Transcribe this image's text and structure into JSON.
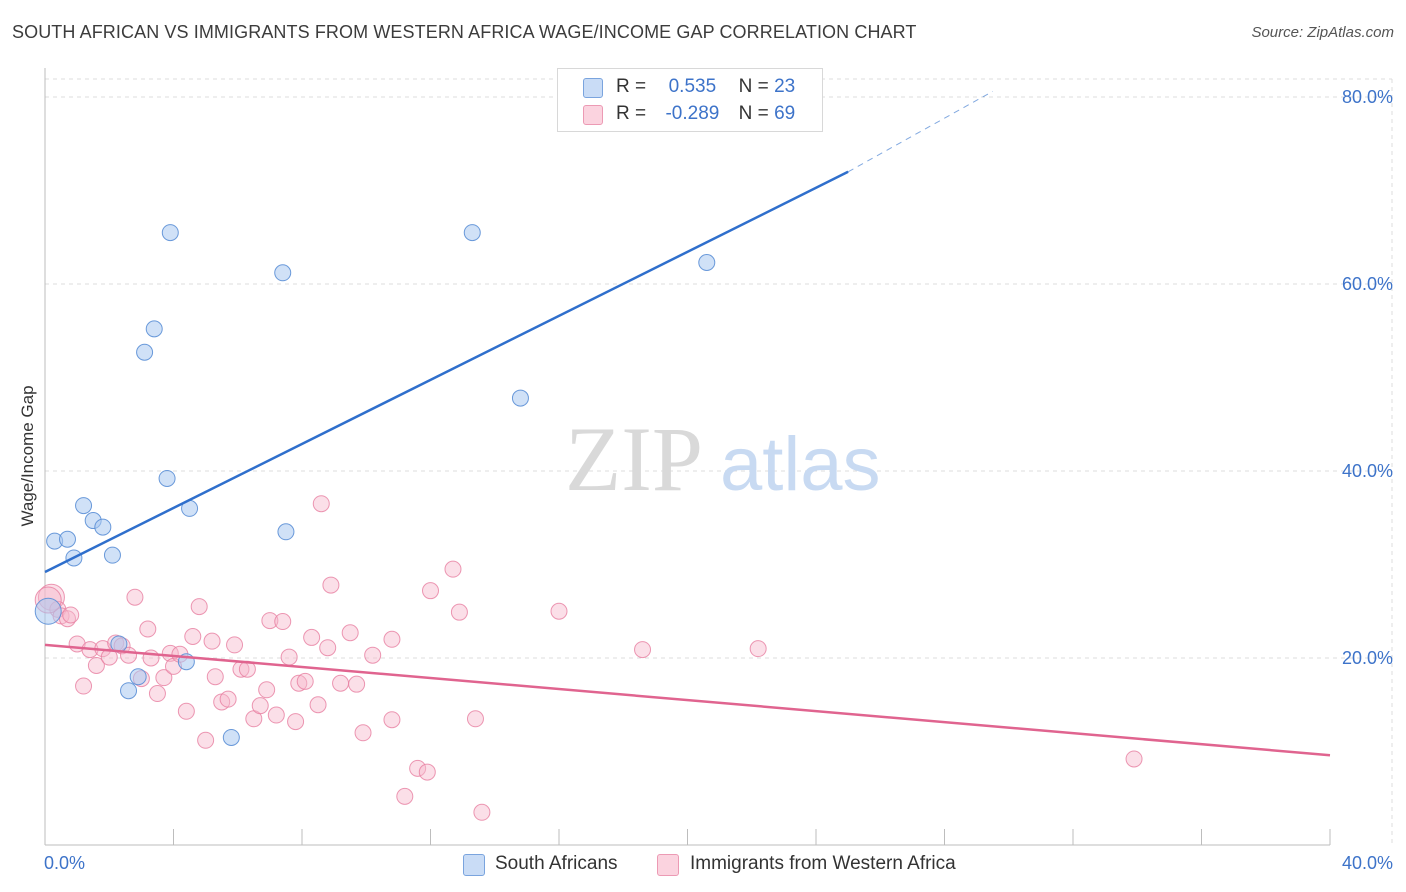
{
  "title": "SOUTH AFRICAN VS IMMIGRANTS FROM WESTERN AFRICA WAGE/INCOME GAP CORRELATION CHART",
  "source": "Source: ZipAtlas.com",
  "watermark": {
    "zip": "ZIP",
    "atlas": "atlas"
  },
  "legend": {
    "r_label": "R =",
    "n_label": "N =",
    "rows": [
      {
        "r": "0.535",
        "n": "23",
        "color": "#a9c8f0"
      },
      {
        "r": "-0.289",
        "n": "69",
        "color": "#f6b8cb"
      }
    ]
  },
  "bottom_legend": {
    "series1": "South Africans",
    "series2": "Immigrants from Western Africa"
  },
  "colors": {
    "blue_fill": "#a9c8f0",
    "blue_stroke": "#5b8fd6",
    "blue_line": "#2f6fcc",
    "pink_fill": "#f6b8cb",
    "pink_stroke": "#e77ea0",
    "pink_line": "#e0648f",
    "tick_label": "#3d73c9"
  },
  "chart_data": {
    "type": "scatter",
    "title": "SOUTH AFRICAN VS IMMIGRANTS FROM WESTERN AFRICA WAGE/INCOME GAP CORRELATION CHART",
    "xlabel": "",
    "ylabel": "Wage/Income Gap",
    "xlim": [
      0,
      40
    ],
    "ylim": [
      0,
      80
    ],
    "x_tick_labels": [
      "0.0%",
      "40.0%"
    ],
    "y_ticks": [
      20,
      40,
      60,
      80
    ],
    "y_tick_labels": [
      "20.0%",
      "40.0%",
      "60.0%",
      "80.0%"
    ],
    "grid": true,
    "legend_position": "top-center",
    "series": [
      {
        "name": "South Africans",
        "r": 0.535,
        "n": 23,
        "trend": {
          "x0": 0,
          "y0": 29.2,
          "x1": 25,
          "y1": 72.0,
          "dashed_to_x": 29.5,
          "dashed_to_y": 80.6
        },
        "points": [
          [
            0.1,
            25.0
          ],
          [
            0.3,
            32.5
          ],
          [
            0.7,
            32.7
          ],
          [
            0.9,
            30.7
          ],
          [
            1.2,
            36.3
          ],
          [
            1.5,
            34.7
          ],
          [
            1.8,
            34.0
          ],
          [
            2.1,
            31.0
          ],
          [
            2.3,
            21.5
          ],
          [
            2.6,
            16.5
          ],
          [
            2.9,
            18.0
          ],
          [
            3.1,
            52.7
          ],
          [
            3.4,
            55.2
          ],
          [
            3.8,
            39.2
          ],
          [
            3.9,
            65.5
          ],
          [
            4.4,
            19.6
          ],
          [
            4.5,
            36.0
          ],
          [
            5.8,
            11.5
          ],
          [
            7.4,
            61.2
          ],
          [
            7.5,
            33.5
          ],
          [
            13.3,
            65.5
          ],
          [
            14.8,
            47.8
          ],
          [
            20.6,
            62.3
          ]
        ]
      },
      {
        "name": "Immigrants from Western Africa",
        "r": -0.289,
        "n": 69,
        "trend": {
          "x0": 0,
          "y0": 21.4,
          "x1": 40,
          "y1": 9.6
        },
        "points": [
          [
            0.2,
            26.5
          ],
          [
            0.4,
            25.2
          ],
          [
            0.5,
            24.5
          ],
          [
            0.7,
            24.2
          ],
          [
            1.0,
            21.5
          ],
          [
            1.2,
            17.0
          ],
          [
            1.4,
            20.9
          ],
          [
            1.6,
            19.2
          ],
          [
            1.8,
            21.0
          ],
          [
            2.0,
            20.1
          ],
          [
            2.2,
            21.6
          ],
          [
            2.4,
            21.3
          ],
          [
            2.6,
            20.3
          ],
          [
            2.8,
            26.5
          ],
          [
            3.0,
            17.8
          ],
          [
            3.2,
            23.1
          ],
          [
            3.3,
            20.0
          ],
          [
            3.5,
            16.2
          ],
          [
            3.7,
            17.9
          ],
          [
            3.9,
            20.5
          ],
          [
            4.0,
            19.1
          ],
          [
            4.2,
            20.4
          ],
          [
            4.4,
            14.3
          ],
          [
            4.6,
            22.3
          ],
          [
            4.8,
            25.5
          ],
          [
            5.0,
            11.2
          ],
          [
            5.2,
            21.8
          ],
          [
            5.3,
            18.0
          ],
          [
            5.5,
            15.3
          ],
          [
            5.7,
            15.6
          ],
          [
            5.9,
            21.4
          ],
          [
            6.1,
            18.8
          ],
          [
            6.3,
            18.8
          ],
          [
            6.5,
            13.5
          ],
          [
            6.7,
            14.9
          ],
          [
            6.9,
            16.6
          ],
          [
            7.0,
            24.0
          ],
          [
            7.2,
            13.9
          ],
          [
            7.4,
            23.9
          ],
          [
            7.6,
            20.1
          ],
          [
            7.8,
            13.2
          ],
          [
            7.9,
            17.3
          ],
          [
            8.1,
            17.5
          ],
          [
            8.3,
            22.2
          ],
          [
            8.5,
            15.0
          ],
          [
            8.6,
            36.5
          ],
          [
            8.8,
            21.1
          ],
          [
            8.9,
            27.8
          ],
          [
            9.2,
            17.3
          ],
          [
            9.5,
            22.7
          ],
          [
            9.7,
            17.2
          ],
          [
            9.9,
            12.0
          ],
          [
            10.2,
            20.3
          ],
          [
            10.8,
            13.4
          ],
          [
            10.8,
            22.0
          ],
          [
            11.2,
            5.2
          ],
          [
            11.6,
            8.2
          ],
          [
            11.9,
            7.8
          ],
          [
            12.0,
            27.2
          ],
          [
            12.7,
            29.5
          ],
          [
            12.9,
            24.9
          ],
          [
            13.4,
            13.5
          ],
          [
            13.6,
            3.5
          ],
          [
            16.0,
            25.0
          ],
          [
            18.6,
            20.9
          ],
          [
            22.2,
            21.0
          ],
          [
            33.9,
            9.2
          ],
          [
            0.1,
            26.2
          ],
          [
            0.8,
            24.6
          ]
        ]
      }
    ]
  }
}
